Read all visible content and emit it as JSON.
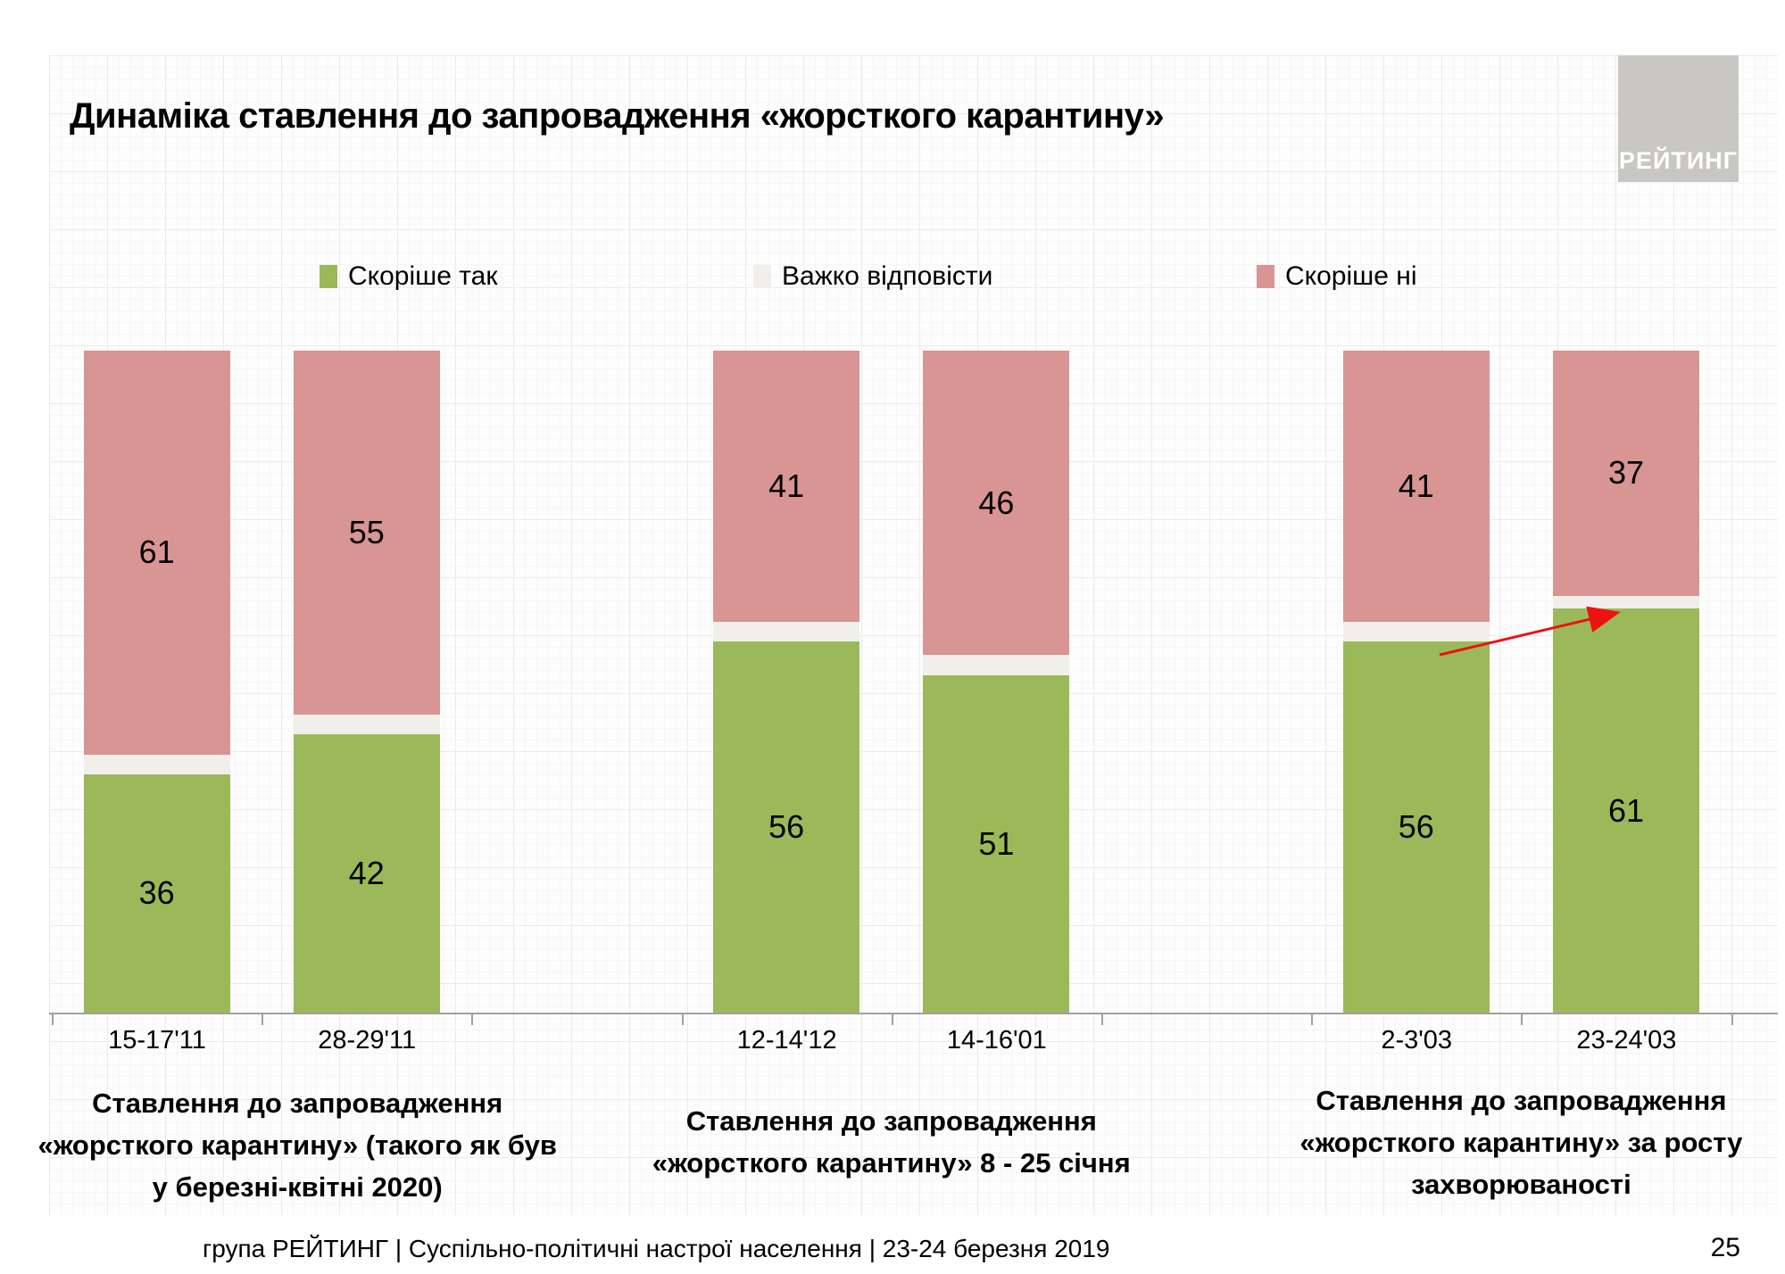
{
  "title": "Динаміка ставлення до запровадження «жорсткого карантину»",
  "logo": {
    "text": "РЕЙТИНГ"
  },
  "legend": [
    {
      "label": "Скоріше так",
      "color": "#9bb958"
    },
    {
      "label": "Важко відповісти",
      "color": "#f0efec"
    },
    {
      "label": "Скоріше ні",
      "color": "#d89593"
    }
  ],
  "chart_data": {
    "type": "bar",
    "stacked": true,
    "unit": "%",
    "ylim": [
      0,
      100
    ],
    "grid": "faint graph-paper background",
    "legend_position": "top",
    "categories": [
      "15-17'11",
      "28-29'11",
      "12-14'12",
      "14-16'01",
      "2-3'03",
      "23-24'03"
    ],
    "series": [
      {
        "name": "Скоріше так",
        "color": "#9bb958",
        "values": [
          36,
          42,
          56,
          51,
          56,
          61
        ],
        "show_labels": true
      },
      {
        "name": "Важко відповісти",
        "color": "#f0efec",
        "values": [
          3,
          3,
          3,
          3,
          3,
          2
        ],
        "show_labels": false
      },
      {
        "name": "Скоріше ні",
        "color": "#d89593",
        "values": [
          61,
          55,
          41,
          46,
          41,
          37
        ],
        "show_labels": true
      }
    ],
    "groups": [
      {
        "categories": [
          "15-17'11",
          "28-29'11"
        ],
        "caption_lines": [
          "Ставлення до запровадження",
          "«жорсткого карантину» (такого як був",
          "у березні-квітні 2020)"
        ]
      },
      {
        "categories": [
          "12-14'12",
          "14-16'01"
        ],
        "caption_lines": [
          "Ставлення до запровадження",
          "«жорсткого карантину» 8 - 25 січня"
        ]
      },
      {
        "categories": [
          "2-3'03",
          "23-24'03"
        ],
        "caption_lines": [
          "Ставлення до запровадження",
          "«жорсткого карантину» за росту",
          "захворюваності"
        ]
      }
    ],
    "annotation": {
      "type": "arrow",
      "color": "#ee1111",
      "note": "points to rise of «Скоріше так» in last period"
    }
  },
  "footer": {
    "left": "група РЕЙТИНГ | Суспільно-політичні настрої населення  | 23-24 березня 2019",
    "page": "25"
  }
}
